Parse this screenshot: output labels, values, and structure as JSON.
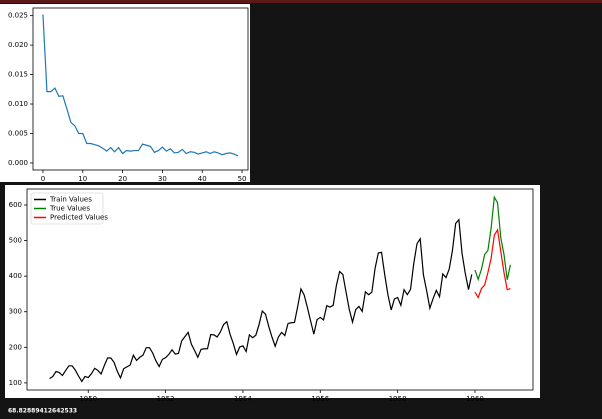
{
  "chart_data": [
    {
      "type": "line",
      "x": [
        0,
        1,
        2,
        3,
        4,
        5,
        6,
        7,
        8,
        9,
        10,
        11,
        12,
        13,
        14,
        15,
        16,
        17,
        18,
        19,
        20,
        21,
        22,
        23,
        24,
        25,
        26,
        27,
        28,
        29,
        30,
        31,
        32,
        33,
        34,
        35,
        36,
        37,
        38,
        39,
        40,
        41,
        42,
        43,
        44,
        45,
        46,
        47,
        48,
        49
      ],
      "series": [
        {
          "color": "#1f77b4",
          "values": [
            0.0252,
            0.0121,
            0.0121,
            0.0127,
            0.0113,
            0.0114,
            0.0092,
            0.0069,
            0.0063,
            0.005,
            0.005,
            0.0033,
            0.0033,
            0.0031,
            0.0029,
            0.0025,
            0.002,
            0.0026,
            0.0019,
            0.0026,
            0.0016,
            0.0021,
            0.002,
            0.0021,
            0.0021,
            0.0032,
            0.003,
            0.0028,
            0.0018,
            0.0021,
            0.0027,
            0.002,
            0.0024,
            0.0017,
            0.0018,
            0.0023,
            0.0016,
            0.0019,
            0.0018,
            0.0015,
            0.0017,
            0.0019,
            0.0016,
            0.0019,
            0.0017,
            0.0014,
            0.0016,
            0.0017,
            0.0015,
            0.0012
          ]
        }
      ],
      "xlim": [
        -2.5,
        51.5
      ],
      "xticks": [
        0,
        10,
        20,
        30,
        40,
        50
      ],
      "ylim": [
        -0.0012,
        0.0263
      ],
      "yticks": [
        {
          "value": 0,
          "label": "0.000"
        },
        {
          "value": 0.005,
          "label": "0.005"
        },
        {
          "value": 0.01,
          "label": "0.010"
        },
        {
          "value": 0.015,
          "label": "0.015"
        },
        {
          "value": 0.02,
          "label": "0.020"
        },
        {
          "value": 0.025,
          "label": "0.025"
        }
      ]
    },
    {
      "type": "line",
      "x": [
        "1949-01",
        "1949-02",
        "1949-03",
        "1949-04",
        "1949-05",
        "1949-06",
        "1949-07",
        "1949-08",
        "1949-09",
        "1949-10",
        "1949-11",
        "1949-12",
        "1950-01",
        "1950-02",
        "1950-03",
        "1950-04",
        "1950-05",
        "1950-06",
        "1950-07",
        "1950-08",
        "1950-09",
        "1950-10",
        "1950-11",
        "1950-12",
        "1951-01",
        "1951-02",
        "1951-03",
        "1951-04",
        "1951-05",
        "1951-06",
        "1951-07",
        "1951-08",
        "1951-09",
        "1951-10",
        "1951-11",
        "1951-12",
        "1952-01",
        "1952-02",
        "1952-03",
        "1952-04",
        "1952-05",
        "1952-06",
        "1952-07",
        "1952-08",
        "1952-09",
        "1952-10",
        "1952-11",
        "1952-12",
        "1953-01",
        "1953-02",
        "1953-03",
        "1953-04",
        "1953-05",
        "1953-06",
        "1953-07",
        "1953-08",
        "1953-09",
        "1953-10",
        "1953-11",
        "1953-12",
        "1954-01",
        "1954-02",
        "1954-03",
        "1954-04",
        "1954-05",
        "1954-06",
        "1954-07",
        "1954-08",
        "1954-09",
        "1954-10",
        "1954-11",
        "1954-12",
        "1955-01",
        "1955-02",
        "1955-03",
        "1955-04",
        "1955-05",
        "1955-06",
        "1955-07",
        "1955-08",
        "1955-09",
        "1955-10",
        "1955-11",
        "1955-12",
        "1956-01",
        "1956-02",
        "1956-03",
        "1956-04",
        "1956-05",
        "1956-06",
        "1956-07",
        "1956-08",
        "1956-09",
        "1956-10",
        "1956-11",
        "1956-12",
        "1957-01",
        "1957-02",
        "1957-03",
        "1957-04",
        "1957-05",
        "1957-06",
        "1957-07",
        "1957-08",
        "1957-09",
        "1957-10",
        "1957-11",
        "1957-12",
        "1958-01",
        "1958-02",
        "1958-03",
        "1958-04",
        "1958-05",
        "1958-06",
        "1958-07",
        "1958-08",
        "1958-09",
        "1958-10",
        "1958-11",
        "1958-12",
        "1959-01",
        "1959-02",
        "1959-03",
        "1959-04",
        "1959-05",
        "1959-06",
        "1959-07",
        "1959-08",
        "1959-09",
        "1959-10",
        "1959-11",
        "1959-12",
        "1960-01",
        "1960-02",
        "1960-03",
        "1960-04",
        "1960-05",
        "1960-06",
        "1960-07",
        "1960-08",
        "1960-09",
        "1960-10",
        "1960-11",
        "1960-12"
      ],
      "series": [
        {
          "name": "Train Values",
          "color": "#000000",
          "values": [
            112,
            118,
            132,
            129,
            121,
            135,
            148,
            148,
            136,
            119,
            104,
            118,
            115,
            126,
            141,
            135,
            125,
            149,
            170,
            170,
            158,
            133,
            114,
            140,
            145,
            150,
            178,
            163,
            172,
            178,
            199,
            199,
            184,
            162,
            146,
            166,
            171,
            180,
            193,
            181,
            183,
            218,
            230,
            242,
            209,
            191,
            172,
            194,
            196,
            196,
            236,
            235,
            229,
            243,
            264,
            272,
            237,
            211,
            180,
            201,
            204,
            188,
            235,
            227,
            234,
            264,
            302,
            293,
            259,
            229,
            203,
            229,
            242,
            233,
            267,
            269,
            270,
            315,
            364,
            347,
            312,
            274,
            237,
            278,
            284,
            277,
            317,
            313,
            318,
            374,
            413,
            405,
            355,
            306,
            271,
            306,
            315,
            301,
            356,
            348,
            355,
            422,
            465,
            467,
            404,
            347,
            305,
            336,
            340,
            318,
            362,
            348,
            363,
            435,
            491,
            505,
            404,
            359,
            310,
            337,
            360,
            342,
            406,
            396,
            420,
            472,
            548,
            559,
            463,
            407,
            362,
            405,
            null,
            null,
            null,
            null,
            null,
            null,
            null,
            null,
            null,
            null,
            null,
            null
          ]
        },
        {
          "name": "True Values",
          "color": "#008000",
          "values": [
            null,
            null,
            null,
            null,
            null,
            null,
            null,
            null,
            null,
            null,
            null,
            null,
            null,
            null,
            null,
            null,
            null,
            null,
            null,
            null,
            null,
            null,
            null,
            null,
            null,
            null,
            null,
            null,
            null,
            null,
            null,
            null,
            null,
            null,
            null,
            null,
            null,
            null,
            null,
            null,
            null,
            null,
            null,
            null,
            null,
            null,
            null,
            null,
            null,
            null,
            null,
            null,
            null,
            null,
            null,
            null,
            null,
            null,
            null,
            null,
            null,
            null,
            null,
            null,
            null,
            null,
            null,
            null,
            null,
            null,
            null,
            null,
            null,
            null,
            null,
            null,
            null,
            null,
            null,
            null,
            null,
            null,
            null,
            null,
            null,
            null,
            null,
            null,
            null,
            null,
            null,
            null,
            null,
            null,
            null,
            null,
            null,
            null,
            null,
            null,
            null,
            null,
            null,
            null,
            null,
            null,
            null,
            null,
            null,
            null,
            null,
            null,
            null,
            null,
            null,
            null,
            null,
            null,
            null,
            null,
            null,
            null,
            null,
            null,
            null,
            null,
            null,
            null,
            null,
            null,
            null,
            null,
            417,
            391,
            419,
            461,
            472,
            535,
            622,
            606,
            508,
            461,
            390,
            432
          ]
        },
        {
          "name": "Predicted Values",
          "color": "#ff0000",
          "values": [
            null,
            null,
            null,
            null,
            null,
            null,
            null,
            null,
            null,
            null,
            null,
            null,
            null,
            null,
            null,
            null,
            null,
            null,
            null,
            null,
            null,
            null,
            null,
            null,
            null,
            null,
            null,
            null,
            null,
            null,
            null,
            null,
            null,
            null,
            null,
            null,
            null,
            null,
            null,
            null,
            null,
            null,
            null,
            null,
            null,
            null,
            null,
            null,
            null,
            null,
            null,
            null,
            null,
            null,
            null,
            null,
            null,
            null,
            null,
            null,
            null,
            null,
            null,
            null,
            null,
            null,
            null,
            null,
            null,
            null,
            null,
            null,
            null,
            null,
            null,
            null,
            null,
            null,
            null,
            null,
            null,
            null,
            null,
            null,
            null,
            null,
            null,
            null,
            null,
            null,
            null,
            null,
            null,
            null,
            null,
            null,
            null,
            null,
            null,
            null,
            null,
            null,
            null,
            null,
            null,
            null,
            null,
            null,
            null,
            null,
            null,
            null,
            null,
            null,
            null,
            null,
            null,
            null,
            null,
            null,
            null,
            null,
            null,
            null,
            null,
            null,
            null,
            null,
            null,
            null,
            null,
            null,
            355,
            340,
            365,
            375,
            410,
            450,
            515,
            530,
            470,
            410,
            362,
            365
          ]
        }
      ],
      "legend": "upper left",
      "xlim": [
        "1948-06",
        "1961-07"
      ],
      "xticks": [
        {
          "value": "1950-01",
          "label": "1950"
        },
        {
          "value": "1952-01",
          "label": "1952"
        },
        {
          "value": "1954-01",
          "label": "1954"
        },
        {
          "value": "1956-01",
          "label": "1956"
        },
        {
          "value": "1958-01",
          "label": "1958"
        },
        {
          "value": "1960-01",
          "label": "1960"
        }
      ],
      "ylim": [
        80,
        645
      ],
      "yticks": [
        100,
        200,
        300,
        400,
        500,
        600
      ]
    }
  ],
  "output_text": "68.82889412642533"
}
